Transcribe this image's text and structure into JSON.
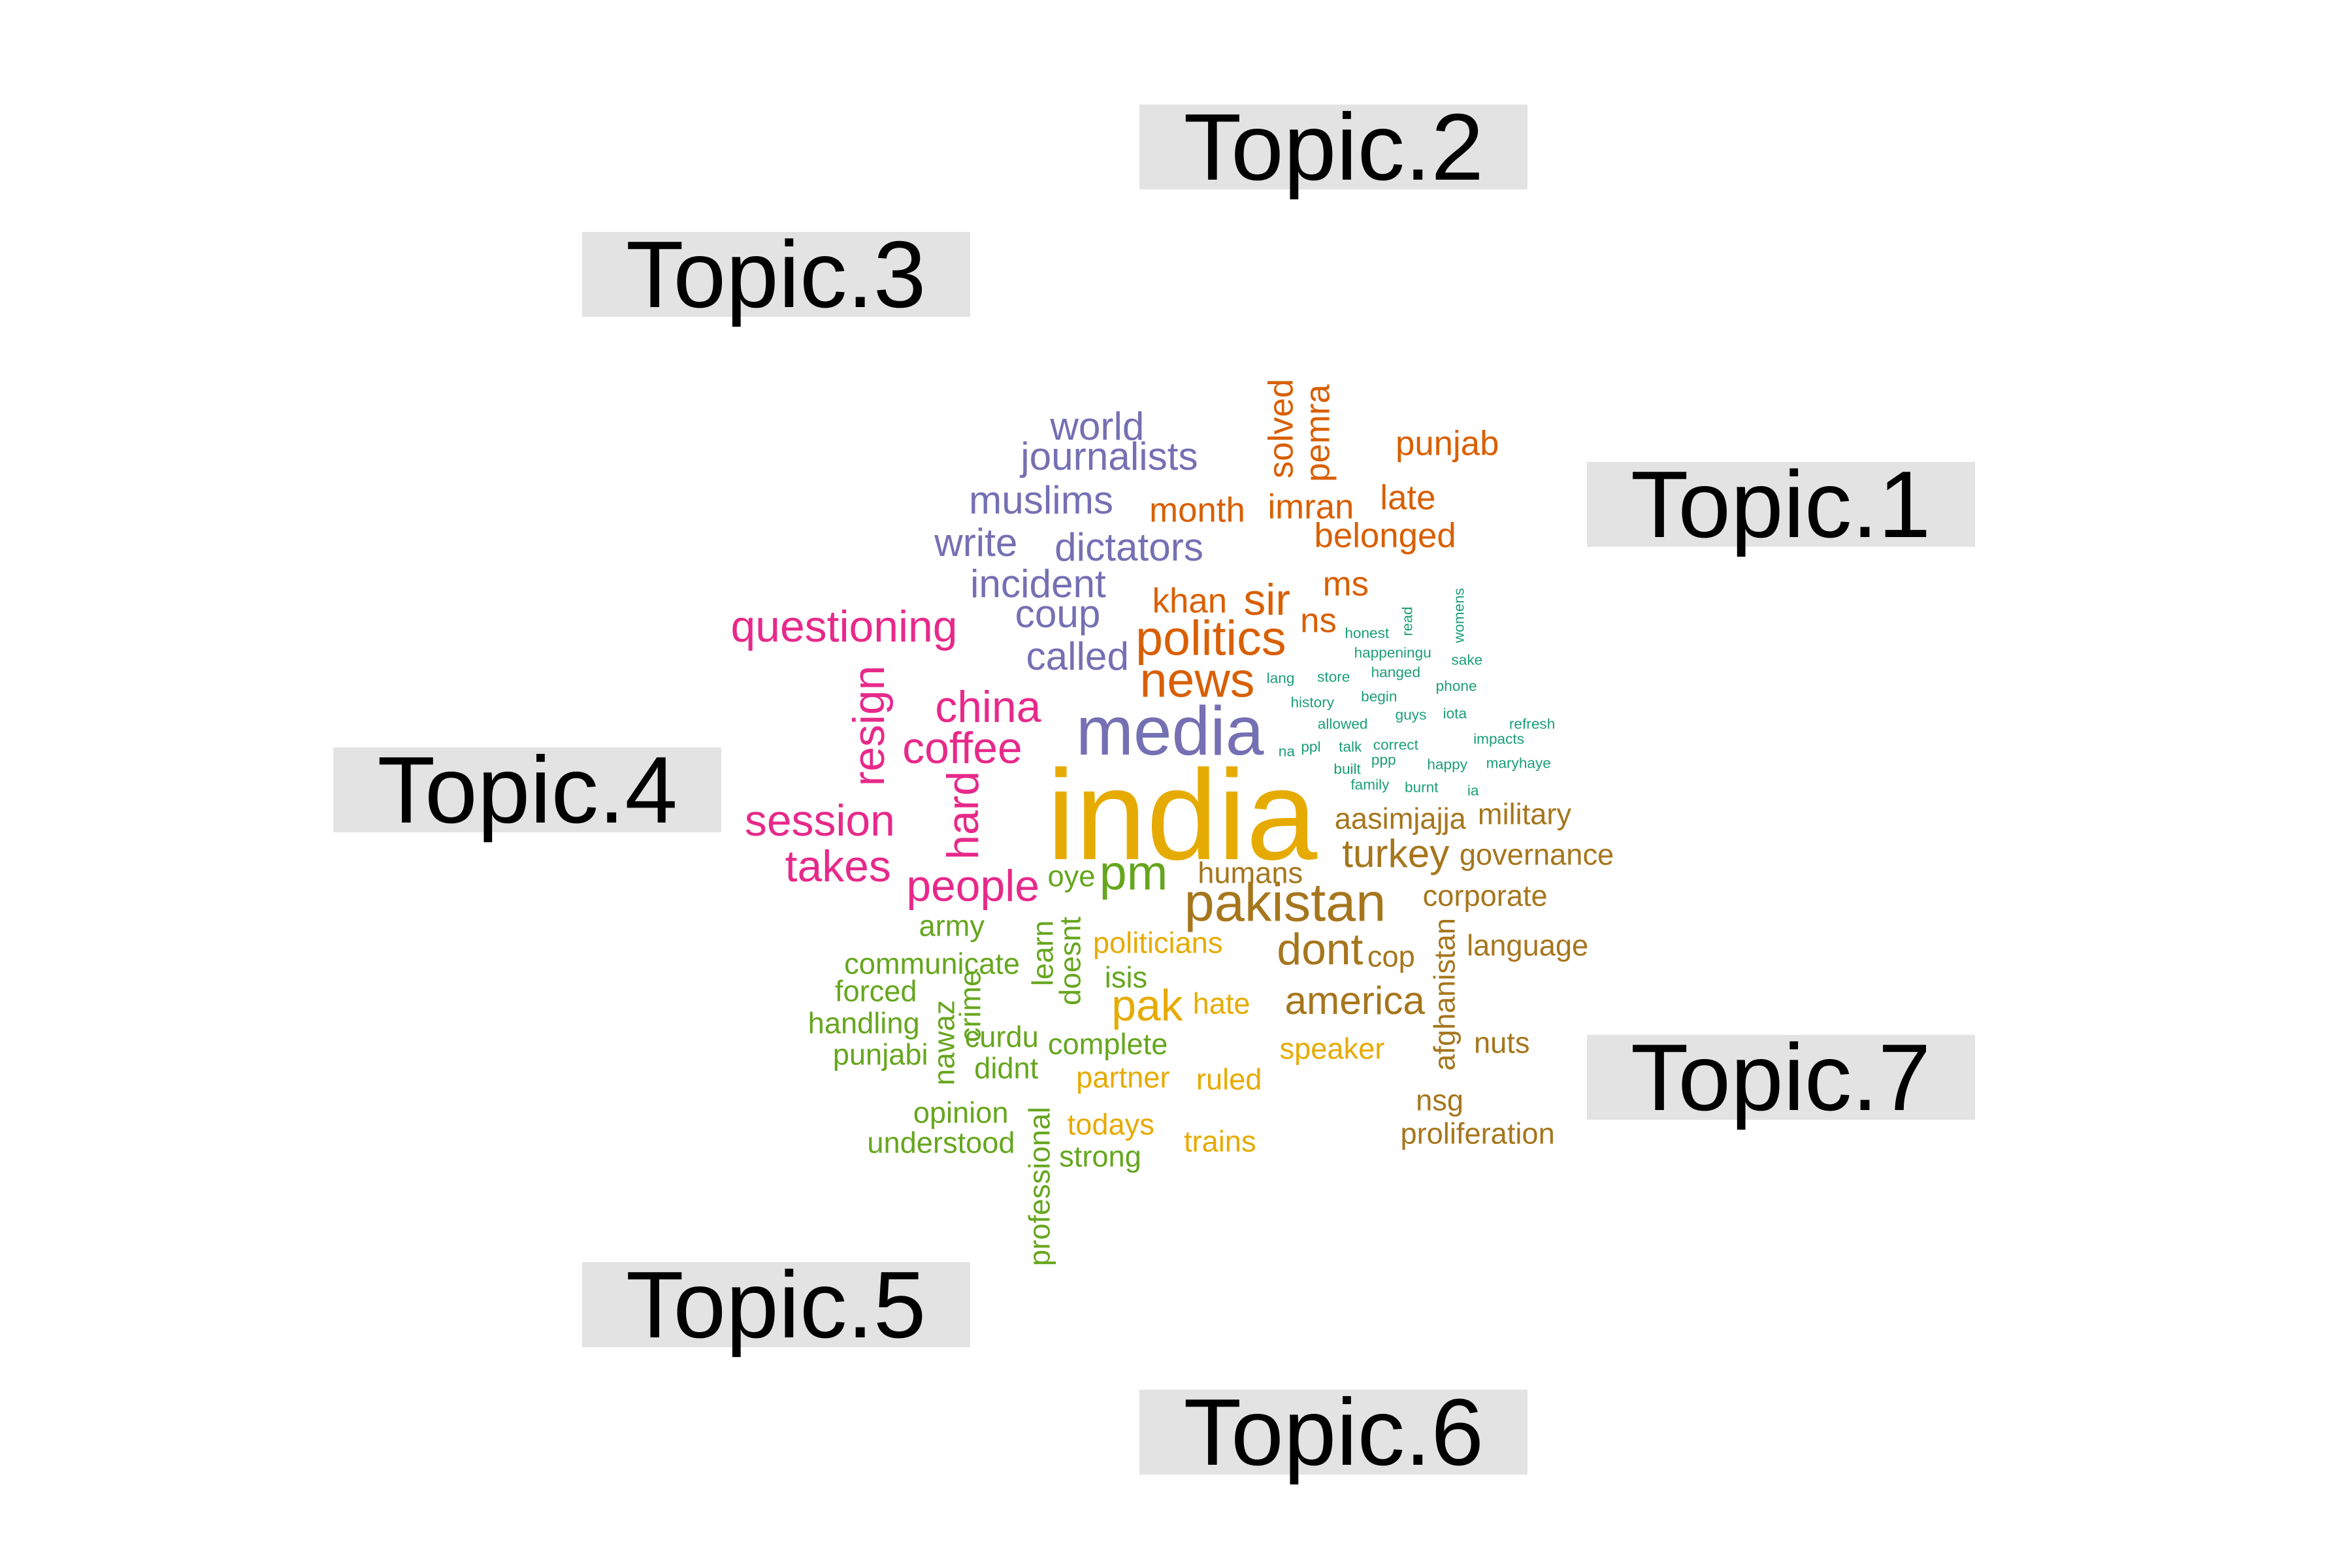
{
  "topic_labels": [
    "Topic.1",
    "Topic.2",
    "Topic.3",
    "Topic.4",
    "Topic.5",
    "Topic.6",
    "Topic.7"
  ],
  "topic_colors": {
    "Topic.1": "#d95f02",
    "Topic.2": "#1b9e77",
    "Topic.3": "#7570b3",
    "Topic.4": "#e7298a",
    "Topic.5": "#66a61e",
    "Topic.6": "#e6ab02",
    "Topic.7": "#a6761d"
  },
  "words": [
    {
      "text": "india",
      "topic": "Topic.6",
      "size": 26,
      "vertical": false
    },
    {
      "text": "media",
      "topic": "Topic.3",
      "size": 14,
      "vertical": false
    },
    {
      "text": "pakistan",
      "topic": "Topic.7",
      "size": 11,
      "vertical": false
    },
    {
      "text": "pm",
      "topic": "Topic.5",
      "size": 10,
      "vertical": false
    },
    {
      "text": "politics",
      "topic": "Topic.1",
      "size": 10,
      "vertical": false
    },
    {
      "text": "news",
      "topic": "Topic.1",
      "size": 10,
      "vertical": false
    },
    {
      "text": "sir",
      "topic": "Topic.1",
      "size": 9,
      "vertical": false
    },
    {
      "text": "dont",
      "topic": "Topic.7",
      "size": 9,
      "vertical": false
    },
    {
      "text": "pak",
      "topic": "Topic.6",
      "size": 9,
      "vertical": false
    },
    {
      "text": "people",
      "topic": "Topic.4",
      "size": 9,
      "vertical": false
    },
    {
      "text": "coffee",
      "topic": "Topic.4",
      "size": 9,
      "vertical": false
    },
    {
      "text": "china",
      "topic": "Topic.4",
      "size": 9,
      "vertical": false
    },
    {
      "text": "session",
      "topic": "Topic.4",
      "size": 9,
      "vertical": false
    },
    {
      "text": "takes",
      "topic": "Topic.4",
      "size": 9,
      "vertical": false
    },
    {
      "text": "questioning",
      "topic": "Topic.4",
      "size": 9,
      "vertical": false
    },
    {
      "text": "resign",
      "topic": "Topic.4",
      "size": 9,
      "vertical": true
    },
    {
      "text": "hard",
      "topic": "Topic.4",
      "size": 9,
      "vertical": true
    },
    {
      "text": "turkey",
      "topic": "Topic.7",
      "size": 8,
      "vertical": false
    },
    {
      "text": "america",
      "topic": "Topic.7",
      "size": 8,
      "vertical": false
    },
    {
      "text": "called",
      "topic": "Topic.3",
      "size": 8,
      "vertical": false
    },
    {
      "text": "coup",
      "topic": "Topic.3",
      "size": 8,
      "vertical": false
    },
    {
      "text": "incident",
      "topic": "Topic.3",
      "size": 8,
      "vertical": false
    },
    {
      "text": "write",
      "topic": "Topic.3",
      "size": 8,
      "vertical": false
    },
    {
      "text": "dictators",
      "topic": "Topic.3",
      "size": 8,
      "vertical": false
    },
    {
      "text": "muslims",
      "topic": "Topic.3",
      "size": 8,
      "vertical": false
    },
    {
      "text": "journalists",
      "topic": "Topic.3",
      "size": 8,
      "vertical": false
    },
    {
      "text": "world",
      "topic": "Topic.3",
      "size": 8,
      "vertical": false
    },
    {
      "text": "khan",
      "topic": "Topic.1",
      "size": 7,
      "vertical": false
    },
    {
      "text": "ms",
      "topic": "Topic.1",
      "size": 7,
      "vertical": false
    },
    {
      "text": "ns",
      "topic": "Topic.1",
      "size": 7,
      "vertical": false
    },
    {
      "text": "month",
      "topic": "Topic.1",
      "size": 7,
      "vertical": false
    },
    {
      "text": "imran",
      "topic": "Topic.1",
      "size": 7,
      "vertical": false
    },
    {
      "text": "late",
      "topic": "Topic.1",
      "size": 7,
      "vertical": false
    },
    {
      "text": "belonged",
      "topic": "Topic.1",
      "size": 7,
      "vertical": false
    },
    {
      "text": "punjab",
      "topic": "Topic.1",
      "size": 7,
      "vertical": false
    },
    {
      "text": "solved",
      "topic": "Topic.1",
      "size": 7,
      "vertical": true
    },
    {
      "text": "pemra",
      "topic": "Topic.1",
      "size": 7,
      "vertical": true
    },
    {
      "text": "aasimjajja",
      "topic": "Topic.7",
      "size": 6,
      "vertical": false
    },
    {
      "text": "military",
      "topic": "Topic.7",
      "size": 6,
      "vertical": false
    },
    {
      "text": "governance",
      "topic": "Topic.7",
      "size": 6,
      "vertical": false
    },
    {
      "text": "humans",
      "topic": "Topic.7",
      "size": 6,
      "vertical": false
    },
    {
      "text": "corporate",
      "topic": "Topic.7",
      "size": 6,
      "vertical": false
    },
    {
      "text": "cop",
      "topic": "Topic.7",
      "size": 6,
      "vertical": false
    },
    {
      "text": "language",
      "topic": "Topic.7",
      "size": 6,
      "vertical": false
    },
    {
      "text": "afghanistan",
      "topic": "Topic.7",
      "size": 6,
      "vertical": true
    },
    {
      "text": "nuts",
      "topic": "Topic.7",
      "size": 6,
      "vertical": false
    },
    {
      "text": "nsg",
      "topic": "Topic.7",
      "size": 6,
      "vertical": false
    },
    {
      "text": "proliferation",
      "topic": "Topic.7",
      "size": 6,
      "vertical": false
    },
    {
      "text": "politicians",
      "topic": "Topic.6",
      "size": 6,
      "vertical": false
    },
    {
      "text": "hate",
      "topic": "Topic.6",
      "size": 6,
      "vertical": false
    },
    {
      "text": "speaker",
      "topic": "Topic.6",
      "size": 6,
      "vertical": false
    },
    {
      "text": "partner",
      "topic": "Topic.6",
      "size": 6,
      "vertical": false
    },
    {
      "text": "ruled",
      "topic": "Topic.6",
      "size": 6,
      "vertical": false
    },
    {
      "text": "todays",
      "topic": "Topic.6",
      "size": 6,
      "vertical": false
    },
    {
      "text": "trains",
      "topic": "Topic.6",
      "size": 6,
      "vertical": false
    },
    {
      "text": "oye",
      "topic": "Topic.5",
      "size": 6,
      "vertical": false
    },
    {
      "text": "doesnt",
      "topic": "Topic.5",
      "size": 6,
      "vertical": true
    },
    {
      "text": "learn",
      "topic": "Topic.5",
      "size": 6,
      "vertical": true
    },
    {
      "text": "army",
      "topic": "Topic.5",
      "size": 6,
      "vertical": false
    },
    {
      "text": "isis",
      "topic": "Topic.5",
      "size": 6,
      "vertical": false
    },
    {
      "text": "communicate",
      "topic": "Topic.5",
      "size": 6,
      "vertical": false
    },
    {
      "text": "forced",
      "topic": "Topic.5",
      "size": 6,
      "vertical": false
    },
    {
      "text": "handling",
      "topic": "Topic.5",
      "size": 6,
      "vertical": false
    },
    {
      "text": "punjabi",
      "topic": "Topic.5",
      "size": 6,
      "vertical": false
    },
    {
      "text": "nawaz",
      "topic": "Topic.5",
      "size": 6,
      "vertical": true
    },
    {
      "text": "crime",
      "topic": "Topic.5",
      "size": 6,
      "vertical": true
    },
    {
      "text": "curdu",
      "topic": "Topic.5",
      "size": 6,
      "vertical": false
    },
    {
      "text": "complete",
      "topic": "Topic.5",
      "size": 6,
      "vertical": false
    },
    {
      "text": "didnt",
      "topic": "Topic.5",
      "size": 6,
      "vertical": false
    },
    {
      "text": "opinion",
      "topic": "Topic.5",
      "size": 6,
      "vertical": false
    },
    {
      "text": "understood",
      "topic": "Topic.5",
      "size": 6,
      "vertical": false
    },
    {
      "text": "strong",
      "topic": "Topic.5",
      "size": 6,
      "vertical": false
    },
    {
      "text": "professional",
      "topic": "Topic.5",
      "size": 6,
      "vertical": true
    },
    {
      "text": "honest",
      "topic": "Topic.2",
      "size": 3,
      "vertical": false
    },
    {
      "text": "read",
      "topic": "Topic.2",
      "size": 3,
      "vertical": true
    },
    {
      "text": "womens",
      "topic": "Topic.2",
      "size": 3,
      "vertical": true
    },
    {
      "text": "happeningu",
      "topic": "Topic.2",
      "size": 3,
      "vertical": false
    },
    {
      "text": "sake",
      "topic": "Topic.2",
      "size": 3,
      "vertical": false
    },
    {
      "text": "lang",
      "topic": "Topic.2",
      "size": 3,
      "vertical": false
    },
    {
      "text": "store",
      "topic": "Topic.2",
      "size": 3,
      "vertical": false
    },
    {
      "text": "hanged",
      "topic": "Topic.2",
      "size": 3,
      "vertical": false
    },
    {
      "text": "history",
      "topic": "Topic.2",
      "size": 3,
      "vertical": false
    },
    {
      "text": "begin",
      "topic": "Topic.2",
      "size": 3,
      "vertical": false
    },
    {
      "text": "phone",
      "topic": "Topic.2",
      "size": 3,
      "vertical": false
    },
    {
      "text": "guys",
      "topic": "Topic.2",
      "size": 3,
      "vertical": false
    },
    {
      "text": "iota",
      "topic": "Topic.2",
      "size": 3,
      "vertical": false
    },
    {
      "text": "allowed",
      "topic": "Topic.2",
      "size": 3,
      "vertical": false
    },
    {
      "text": "refresh",
      "topic": "Topic.2",
      "size": 3,
      "vertical": false
    },
    {
      "text": "impacts",
      "topic": "Topic.2",
      "size": 3,
      "vertical": false
    },
    {
      "text": "na",
      "topic": "Topic.2",
      "size": 3,
      "vertical": false
    },
    {
      "text": "ppl",
      "topic": "Topic.2",
      "size": 3,
      "vertical": false
    },
    {
      "text": "talk",
      "topic": "Topic.2",
      "size": 3,
      "vertical": false
    },
    {
      "text": "correct",
      "topic": "Topic.2",
      "size": 3,
      "vertical": false
    },
    {
      "text": "built",
      "topic": "Topic.2",
      "size": 3,
      "vertical": false
    },
    {
      "text": "ppp",
      "topic": "Topic.2",
      "size": 3,
      "vertical": false
    },
    {
      "text": "happy",
      "topic": "Topic.2",
      "size": 3,
      "vertical": false
    },
    {
      "text": "maryhaye",
      "topic": "Topic.2",
      "size": 3,
      "vertical": false
    },
    {
      "text": "family",
      "topic": "Topic.2",
      "size": 3,
      "vertical": false
    },
    {
      "text": "burnt",
      "topic": "Topic.2",
      "size": 3,
      "vertical": false
    },
    {
      "text": "ia",
      "topic": "Topic.2",
      "size": 3,
      "vertical": false
    }
  ]
}
